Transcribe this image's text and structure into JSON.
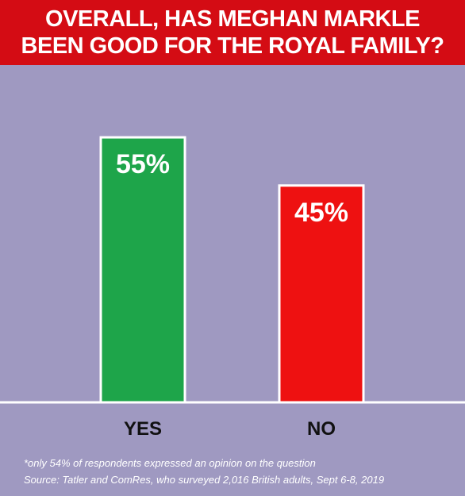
{
  "header": {
    "title_line1": "OVERALL, HAS MEGHAN MARKLE",
    "title_line2": "BEEN GOOD FOR THE ROYAL FAMILY?"
  },
  "chart_data": {
    "type": "bar",
    "title": "OVERALL, HAS MEGHAN MARKLE BEEN GOOD FOR THE ROYAL FAMILY?",
    "categories": [
      "YES",
      "NO"
    ],
    "values": [
      55,
      45
    ],
    "value_labels": [
      "55%",
      "45%"
    ],
    "colors": [
      "#1ea54a",
      "#ee1111"
    ],
    "ylim": [
      0,
      70
    ],
    "grid": false,
    "legend": "none"
  },
  "footnotes": {
    "note": "*only 54% of respondents expressed an opinion on the question",
    "source": "Source: Tatler and ComRes, who surveyed 2,016 British adults, Sept 6-8, 2019"
  }
}
